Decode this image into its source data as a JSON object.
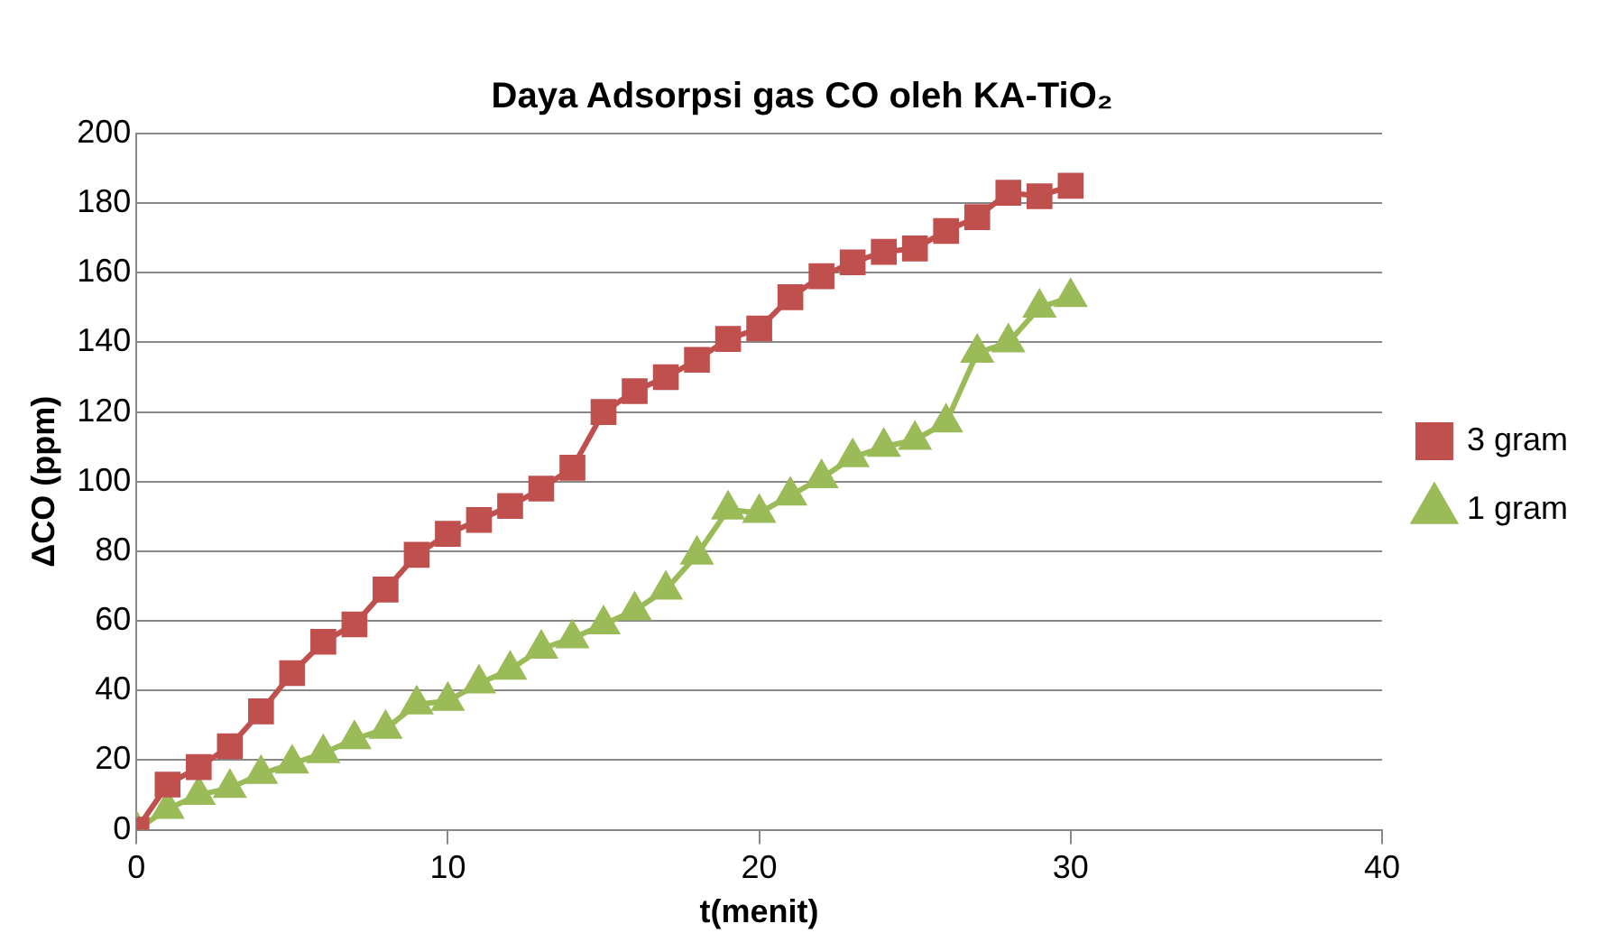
{
  "chart_data": {
    "type": "line",
    "title": "Daya Adsorpsi gas CO oleh KA-TiO₂",
    "xlabel": "t(menit)",
    "ylabel": "ΔCO (ppm)",
    "x": [
      0,
      1,
      2,
      3,
      4,
      5,
      6,
      7,
      8,
      9,
      10,
      11,
      12,
      13,
      14,
      15,
      16,
      17,
      18,
      19,
      20,
      21,
      22,
      23,
      24,
      25,
      26,
      27,
      28,
      29,
      30
    ],
    "series": [
      {
        "name": "3 gram",
        "color": "#c0504d",
        "marker": "square",
        "values": [
          0,
          13,
          18,
          24,
          34,
          45,
          54,
          59,
          69,
          79,
          85,
          89,
          93,
          98,
          104,
          120,
          126,
          130,
          135,
          141,
          144,
          153,
          159,
          163,
          166,
          167,
          172,
          176,
          183,
          182,
          185
        ]
      },
      {
        "name": "1 gram",
        "color": "#9bbb59",
        "marker": "triangle",
        "values": [
          0,
          6,
          10,
          12,
          16,
          19,
          22,
          26,
          29,
          36,
          37,
          42,
          46,
          52,
          55,
          59,
          63,
          69,
          79,
          92,
          91,
          96,
          101,
          107,
          110,
          112,
          117,
          137,
          140,
          150,
          153
        ]
      }
    ],
    "xlim": [
      0,
      40
    ],
    "xticks": [
      0,
      10,
      20,
      30,
      40
    ],
    "ylim": [
      0,
      200
    ],
    "yticks": [
      0,
      20,
      40,
      60,
      80,
      100,
      120,
      140,
      160,
      180,
      200
    ],
    "grid": "y",
    "legend": "right"
  }
}
